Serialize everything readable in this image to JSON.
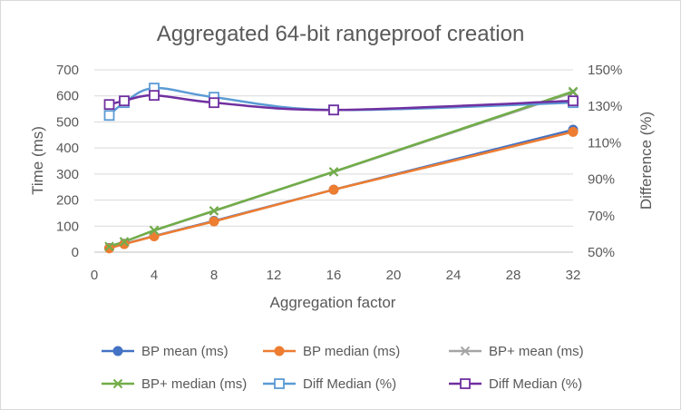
{
  "chart_data": {
    "type": "line",
    "title": "Aggregated 64-bit rangeproof creation",
    "xlabel": "Aggregation factor",
    "ylabel": "Time (ms)",
    "y2label": "Difference (%)",
    "xlim": [
      0,
      32
    ],
    "ylim": [
      0,
      700
    ],
    "y2lim": [
      50,
      150
    ],
    "x_ticks": [
      "0",
      "4",
      "8",
      "12",
      "16",
      "20",
      "24",
      "28",
      "32"
    ],
    "y_ticks": [
      "0",
      "100",
      "200",
      "300",
      "400",
      "500",
      "600",
      "700"
    ],
    "y2_ticks": [
      "50%",
      "70%",
      "90%",
      "110%",
      "130%",
      "150%"
    ],
    "legend_position": "bottom",
    "grid": "horizontal",
    "x": [
      1,
      2,
      4,
      8,
      16,
      32
    ],
    "series": [
      {
        "name": "BP mean (ms)",
        "axis": "left",
        "color": "#4472C4",
        "marker": "circle",
        "values": [
          16,
          32,
          62,
          120,
          240,
          470
        ]
      },
      {
        "name": "BP median (ms)",
        "axis": "left",
        "color": "#ED7D31",
        "marker": "circle",
        "values": [
          15,
          31,
          61,
          118,
          240,
          462
        ]
      },
      {
        "name": "BP+ mean (ms)",
        "axis": "left",
        "color": "#A5A5A5",
        "marker": "x",
        "values": [
          22,
          40,
          83,
          158,
          308,
          613
        ]
      },
      {
        "name": "BP+ median (ms)",
        "axis": "left",
        "color": "#70AD47",
        "marker": "x",
        "values": [
          22,
          40,
          84,
          159,
          309,
          617
        ]
      },
      {
        "name": "Diff Median (%)",
        "axis": "right",
        "color": "#5B9BD5",
        "marker": "square-open",
        "values": [
          125,
          132,
          140,
          135,
          128,
          132
        ]
      },
      {
        "name": "Diff Median (%)",
        "axis": "right",
        "color": "#7030A0",
        "marker": "square-open",
        "values": [
          131,
          133,
          136,
          132,
          128,
          133
        ]
      }
    ]
  }
}
